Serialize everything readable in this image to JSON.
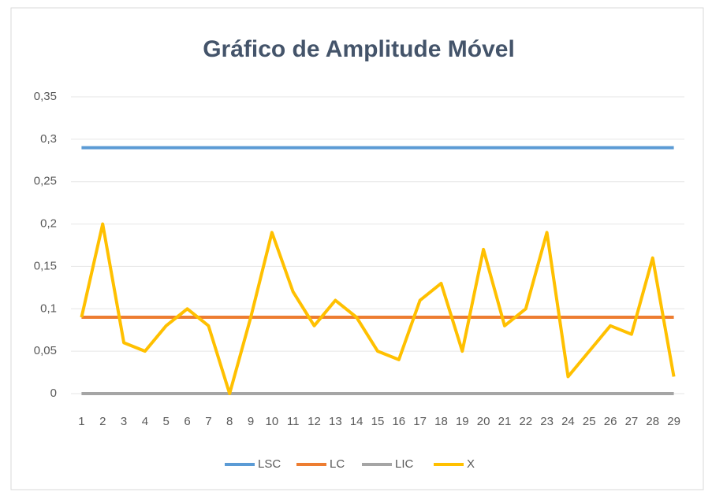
{
  "chart_data": {
    "type": "line",
    "title": "Gráfico de Amplitude Móvel",
    "categories": [
      "1",
      "2",
      "3",
      "4",
      "5",
      "6",
      "7",
      "8",
      "9",
      "10",
      "11",
      "12",
      "13",
      "14",
      "15",
      "16",
      "17",
      "18",
      "19",
      "20",
      "21",
      "22",
      "23",
      "24",
      "25",
      "26",
      "27",
      "28",
      "29"
    ],
    "series": [
      {
        "name": "LSC",
        "color": "#5b9bd5",
        "values": [
          0.29,
          0.29,
          0.29,
          0.29,
          0.29,
          0.29,
          0.29,
          0.29,
          0.29,
          0.29,
          0.29,
          0.29,
          0.29,
          0.29,
          0.29,
          0.29,
          0.29,
          0.29,
          0.29,
          0.29,
          0.29,
          0.29,
          0.29,
          0.29,
          0.29,
          0.29,
          0.29,
          0.29,
          0.29
        ]
      },
      {
        "name": "LC",
        "color": "#ed7d31",
        "values": [
          0.09,
          0.09,
          0.09,
          0.09,
          0.09,
          0.09,
          0.09,
          0.09,
          0.09,
          0.09,
          0.09,
          0.09,
          0.09,
          0.09,
          0.09,
          0.09,
          0.09,
          0.09,
          0.09,
          0.09,
          0.09,
          0.09,
          0.09,
          0.09,
          0.09,
          0.09,
          0.09,
          0.09,
          0.09
        ]
      },
      {
        "name": "LIC",
        "color": "#a5a5a5",
        "values": [
          0,
          0,
          0,
          0,
          0,
          0,
          0,
          0,
          0,
          0,
          0,
          0,
          0,
          0,
          0,
          0,
          0,
          0,
          0,
          0,
          0,
          0,
          0,
          0,
          0,
          0,
          0,
          0,
          0
        ]
      },
      {
        "name": "X",
        "color": "#ffc000",
        "values": [
          0.09,
          0.2,
          0.06,
          0.05,
          0.08,
          0.1,
          0.08,
          0,
          0.09,
          0.19,
          0.12,
          0.08,
          0.11,
          0.09,
          0.05,
          0.04,
          0.11,
          0.13,
          0.05,
          0.17,
          0.08,
          0.1,
          0.19,
          0.02,
          0.05,
          0.08,
          0.07,
          0.16,
          0.02
        ]
      }
    ],
    "ylim": [
      0,
      0.35
    ],
    "yticks": [
      0,
      {
        "value": 0.05,
        "label": "0,05"
      },
      {
        "value": 0.1,
        "label": "0,1"
      },
      {
        "value": 0.15,
        "label": "0,15"
      },
      {
        "value": 0.2,
        "label": "0,2"
      },
      {
        "value": 0.25,
        "label": "0,25"
      },
      {
        "value": 0.3,
        "label": "0,3"
      },
      {
        "value": 0.35,
        "label": "0,35"
      }
    ],
    "grid": true,
    "legend": "bottom"
  }
}
